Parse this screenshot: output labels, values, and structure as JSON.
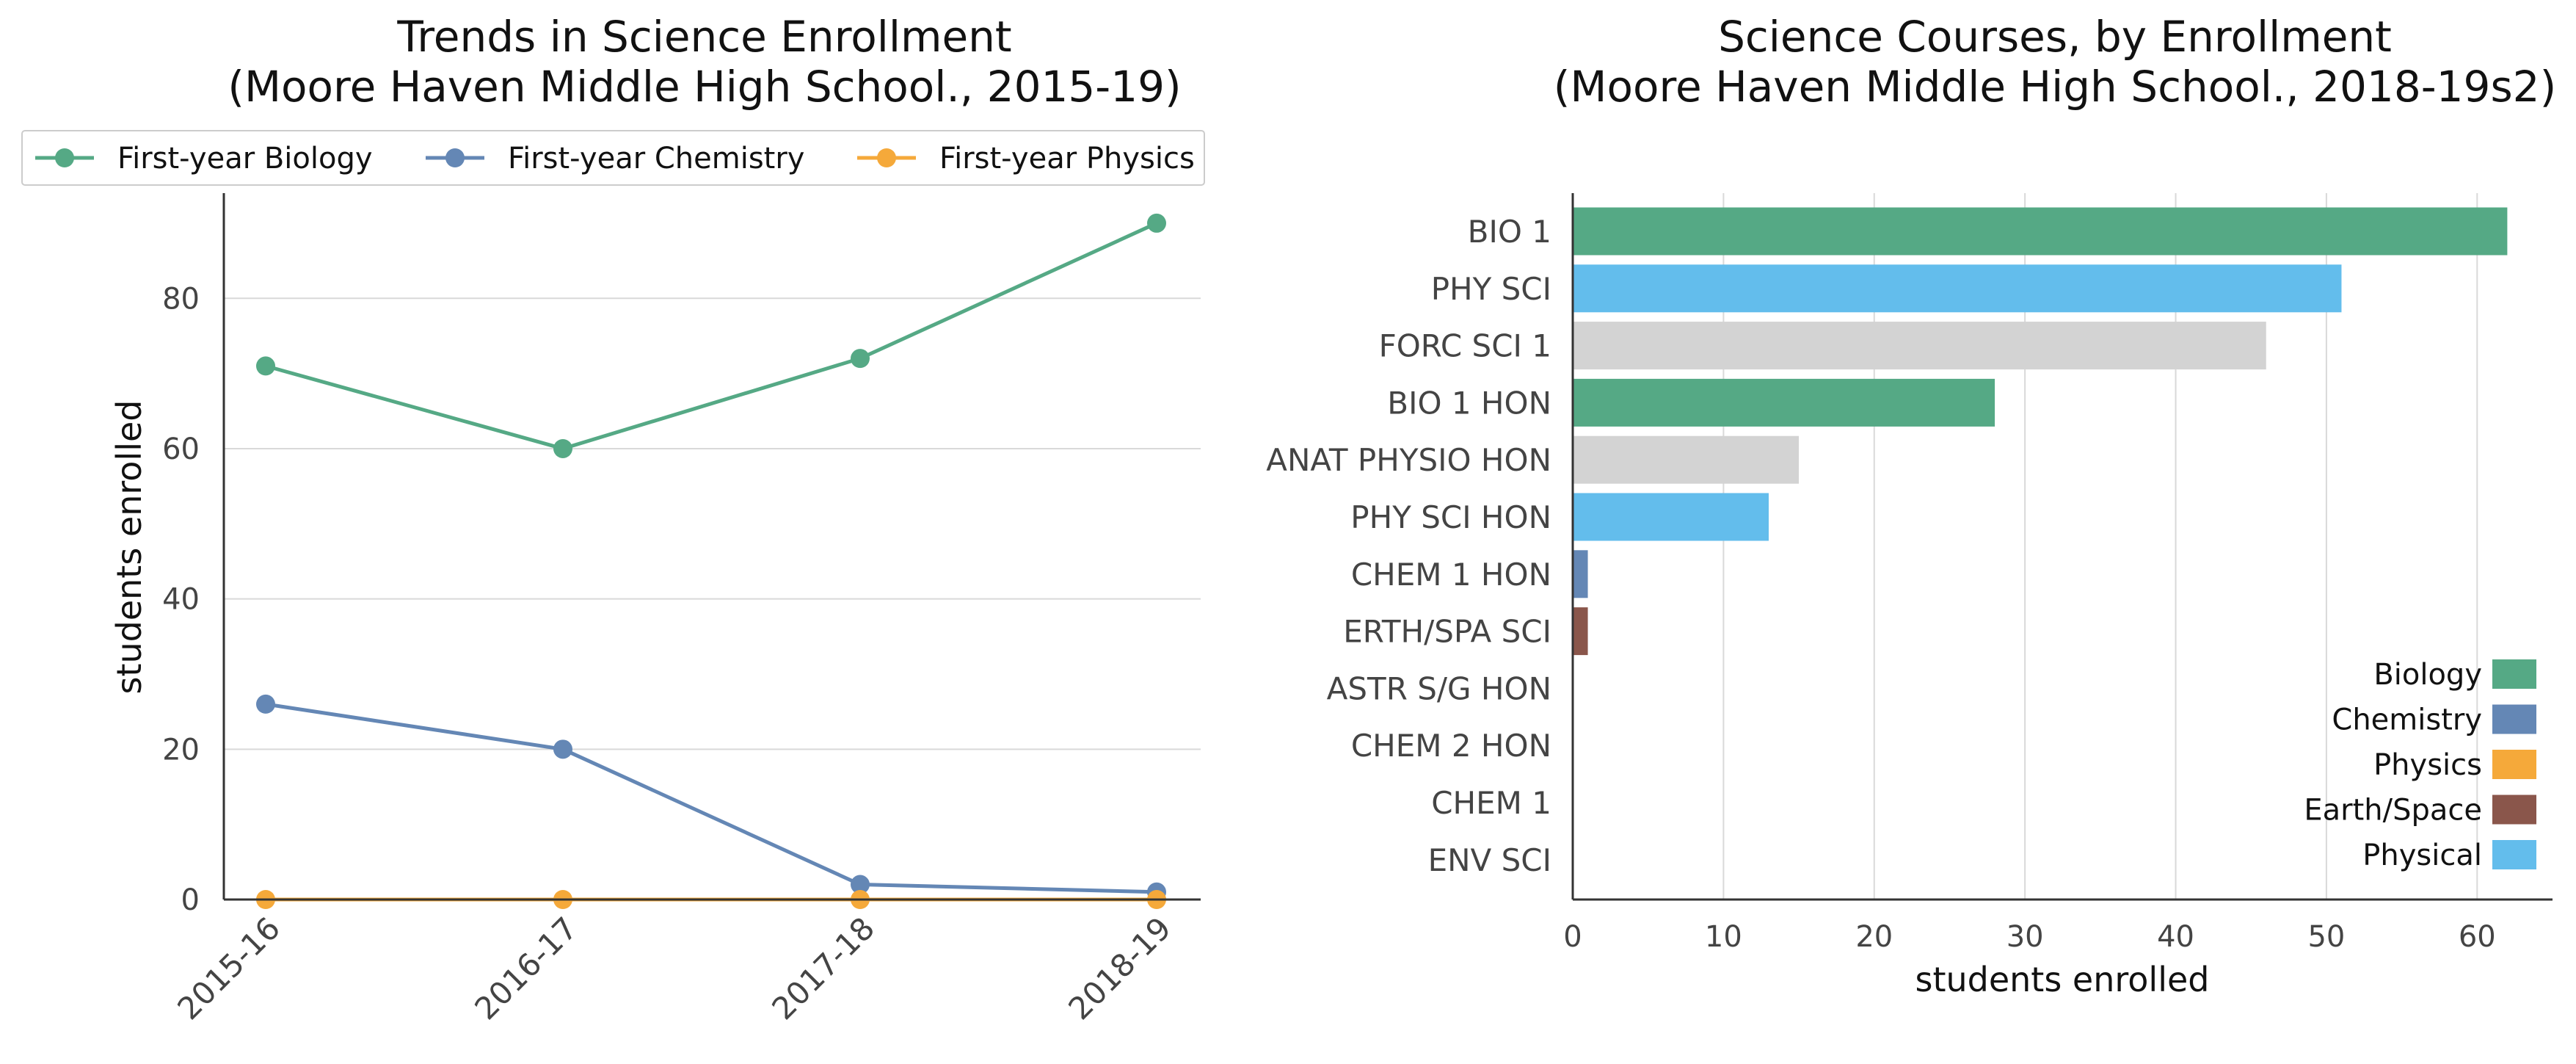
{
  "chart_data": [
    {
      "type": "line",
      "title": "Trends in Science Enrollment",
      "subtitle": "(Moore Haven Middle High School., 2015-19)",
      "xlabel": "",
      "ylabel": "students enrolled",
      "categories": [
        "2015-16",
        "2016-17",
        "2017-18",
        "2018-19"
      ],
      "series": [
        {
          "name": "First-year Biology",
          "color": "#55a985",
          "values": [
            71,
            60,
            72,
            90
          ]
        },
        {
          "name": "First-year Chemistry",
          "color": "#6487b5",
          "values": [
            26,
            20,
            2,
            1
          ]
        },
        {
          "name": "First-year Physics",
          "color": "#f5a93a",
          "values": [
            0,
            0,
            0,
            0
          ]
        }
      ],
      "ylim": [
        0,
        94
      ],
      "yticks": [
        0,
        20,
        40,
        60,
        80
      ],
      "grid": "horizontal",
      "legend_position": "top"
    },
    {
      "type": "bar",
      "orientation": "horizontal",
      "title": "Science Courses, by Enrollment",
      "subtitle": "(Moore Haven Middle High School., 2018-19s2)",
      "xlabel": "students enrolled",
      "ylabel": "",
      "categories": [
        "BIO 1",
        "PHY SCI",
        "FORC SCI 1",
        "BIO 1 HON",
        "ANAT PHYSIO HON",
        "PHY SCI HON",
        "CHEM 1 HON",
        "ERTH/SPA SCI",
        "ASTR S/G HON",
        "CHEM 2 HON",
        "CHEM 1",
        "ENV SCI"
      ],
      "values": [
        62,
        51,
        46,
        28,
        15,
        13,
        1,
        1,
        0,
        0,
        0,
        0
      ],
      "bar_groups": [
        "Biology",
        "Physical",
        "Other",
        "Biology",
        "Other",
        "Physical",
        "Chemistry",
        "Earth/Space",
        "Other",
        "Chemistry",
        "Chemistry",
        "Other"
      ],
      "group_colors": {
        "Biology": "#55a985",
        "Chemistry": "#6487b5",
        "Physics": "#f5a93a",
        "Earth/Space": "#8a564b",
        "Physical": "#63bdec",
        "Other": "#d3d3d3"
      },
      "legend": [
        "Biology",
        "Chemistry",
        "Physics",
        "Earth/Space",
        "Physical"
      ],
      "legend_position": "bottom-right",
      "xlim": [
        0,
        65
      ],
      "xticks": [
        0,
        10,
        20,
        30,
        40,
        50,
        60
      ],
      "grid": "vertical"
    }
  ]
}
